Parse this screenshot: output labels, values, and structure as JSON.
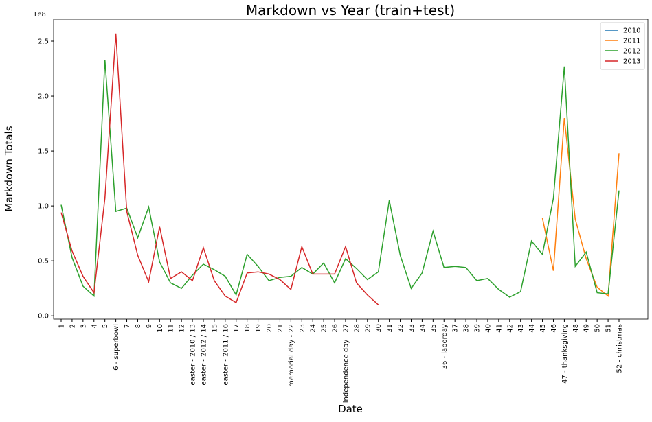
{
  "chart_data": {
    "type": "line",
    "title": "Markdown vs Year (train+test)",
    "x_label": "Date",
    "y_label": "Markdown Totals",
    "y_offset_text": "1e8",
    "categories": [
      "1",
      "2",
      "3",
      "4",
      "5",
      "6 - superbowl",
      "7",
      "8",
      "9",
      "10",
      "11",
      "12",
      "easter - 2010 / 13",
      "easter - 2012 / 14",
      "15",
      "easter - 2011 / 16",
      "17",
      "18",
      "19",
      "20",
      "21",
      "memorial day - 22",
      "23",
      "24",
      "25",
      "26",
      "independence day - 27",
      "28",
      "29",
      "30",
      "31",
      "32",
      "33",
      "34",
      "35",
      "36 - laborday",
      "37",
      "38",
      "39",
      "40",
      "41",
      "42",
      "43",
      "44",
      "45",
      "46",
      "47 - thanksgiving",
      "48",
      "49",
      "50",
      "51",
      "52 - christmas"
    ],
    "series": [
      {
        "name": "2010",
        "color": "#1f77b4",
        "values": [
          null,
          null,
          null,
          null,
          null,
          null,
          null,
          null,
          null,
          null,
          null,
          null,
          null,
          null,
          null,
          null,
          null,
          null,
          null,
          null,
          null,
          null,
          null,
          null,
          null,
          null,
          null,
          null,
          null,
          null,
          null,
          null,
          null,
          null,
          null,
          null,
          null,
          null,
          null,
          null,
          null,
          null,
          null,
          null,
          null,
          null,
          null,
          null,
          null,
          null,
          null,
          null
        ]
      },
      {
        "name": "2011",
        "color": "#ff7f0e",
        "values": [
          null,
          null,
          null,
          null,
          null,
          null,
          null,
          null,
          null,
          null,
          null,
          null,
          null,
          null,
          null,
          null,
          null,
          null,
          null,
          null,
          null,
          null,
          null,
          null,
          null,
          null,
          null,
          null,
          null,
          null,
          null,
          null,
          null,
          null,
          null,
          null,
          null,
          null,
          null,
          null,
          null,
          null,
          null,
          null,
          0.89,
          0.41,
          1.8,
          0.88,
          0.52,
          0.26,
          0.18,
          1.48
        ]
      },
      {
        "name": "2012",
        "color": "#2ca02c",
        "values": [
          1.01,
          0.53,
          0.27,
          0.18,
          2.33,
          0.95,
          0.98,
          0.71,
          0.99,
          0.49,
          0.3,
          0.25,
          0.37,
          0.47,
          0.42,
          0.36,
          0.19,
          0.56,
          0.45,
          0.32,
          0.35,
          0.36,
          0.44,
          0.38,
          0.48,
          0.3,
          0.52,
          0.43,
          0.33,
          0.4,
          1.05,
          0.55,
          0.25,
          0.39,
          0.77,
          0.44,
          0.45,
          0.44,
          0.32,
          0.34,
          0.24,
          0.17,
          0.22,
          0.68,
          0.56,
          1.07,
          2.27,
          0.45,
          0.58,
          0.21,
          0.2,
          1.14
        ]
      },
      {
        "name": "2013",
        "color": "#d62728",
        "values": [
          0.94,
          0.59,
          0.36,
          0.21,
          1.07,
          2.57,
          0.95,
          0.55,
          0.31,
          0.81,
          0.34,
          0.4,
          0.32,
          0.62,
          0.32,
          0.18,
          0.12,
          0.39,
          0.4,
          0.38,
          0.33,
          0.24,
          0.63,
          0.38,
          0.38,
          0.38,
          0.63,
          0.3,
          0.19,
          0.1,
          null,
          null,
          null,
          null,
          null,
          null,
          null,
          null,
          null,
          null,
          null,
          null,
          null,
          null,
          null,
          null,
          null,
          null,
          null,
          null,
          null,
          null
        ]
      }
    ],
    "ylim": [
      -0.03,
      2.7
    ],
    "yticks": [
      {
        "value": 0,
        "label": "0.0"
      },
      0.5,
      {
        "value": 1,
        "label": "1.0"
      },
      1.5,
      {
        "value": 2,
        "label": "2.0"
      },
      2.5
    ],
    "grid": false,
    "legend": "upper right"
  }
}
